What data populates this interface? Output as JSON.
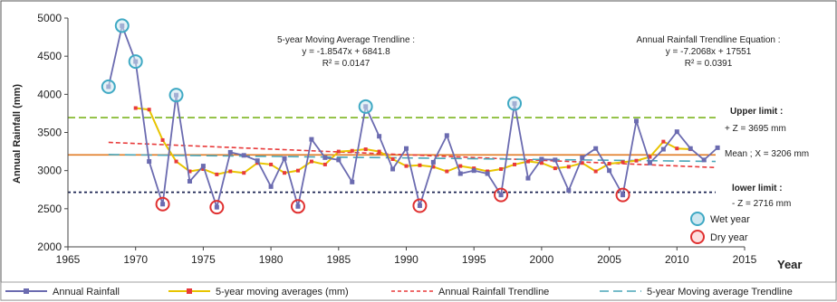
{
  "chart_data": {
    "type": "line",
    "title": "",
    "xlabel": "Year",
    "ylabel": "Annual Rainfall (mm)",
    "xlim": [
      1965,
      2015
    ],
    "ylim": [
      2000,
      5000
    ],
    "xticks": [
      1965,
      1970,
      1975,
      1980,
      1985,
      1990,
      1995,
      2000,
      2005,
      2010,
      2015
    ],
    "yticks": [
      2000,
      2500,
      3000,
      3500,
      4000,
      4500,
      5000
    ],
    "x": [
      1968,
      1969,
      1970,
      1971,
      1972,
      1973,
      1974,
      1975,
      1976,
      1977,
      1978,
      1979,
      1980,
      1981,
      1982,
      1983,
      1984,
      1985,
      1986,
      1987,
      1988,
      1989,
      1990,
      1991,
      1992,
      1993,
      1994,
      1995,
      1996,
      1997,
      1998,
      1999,
      2000,
      2001,
      2002,
      2003,
      2004,
      2005,
      2006,
      2007,
      2008,
      2009,
      2010,
      2011,
      2012,
      2013
    ],
    "series": [
      {
        "name": "Annual Rainfall",
        "color": "#6b6bb0",
        "values": [
          4100,
          4900,
          4430,
          3120,
          2560,
          3990,
          2860,
          3060,
          2520,
          3240,
          3200,
          3130,
          2790,
          3160,
          2530,
          3410,
          3170,
          3140,
          2850,
          3840,
          3450,
          3020,
          3290,
          2540,
          3110,
          3460,
          2960,
          3000,
          2960,
          2680,
          3880,
          2900,
          3150,
          3140,
          2740,
          3170,
          3290,
          3000,
          2680,
          3650,
          3100,
          3280,
          3510,
          3290,
          3140,
          3300
        ]
      },
      {
        "name": "5-year moving averages (mm)",
        "color": "#e8c400",
        "values": [
          null,
          null,
          3820,
          3800,
          3400,
          3120,
          2990,
          3020,
          2950,
          2990,
          2970,
          3100,
          3080,
          2970,
          3000,
          3120,
          3080,
          3250,
          3260,
          3280,
          3250,
          3150,
          3060,
          3070,
          3050,
          2990,
          3060,
          3030,
          2990,
          3020,
          3080,
          3120,
          3100,
          3030,
          3050,
          3100,
          2990,
          3090,
          3110,
          3130,
          3180,
          3380,
          3290,
          3280,
          null,
          null
        ]
      }
    ],
    "trendlines": [
      {
        "name": "Annual Rainfall Trendline",
        "color": "#e83a3a",
        "y_start": 3370,
        "y_end": 3040
      },
      {
        "name": "5-year Moving average Trendline",
        "color": "#4aa6b8",
        "y_start": 3210,
        "y_end": 3120
      }
    ],
    "reference_lines": [
      {
        "name": "Upper limit",
        "value": 3695,
        "color": "#8fbf3f"
      },
      {
        "name": "Mean",
        "value": 3206,
        "color": "#e07a22"
      },
      {
        "name": "lower limit",
        "value": 2716,
        "color": "#1a2250"
      }
    ],
    "wet_years": [
      1968,
      1969,
      1970,
      1973,
      1987,
      1998
    ],
    "dry_years": [
      1972,
      1976,
      1982,
      1991,
      1997,
      2006
    ],
    "legend_position": "bottom",
    "grid": false
  },
  "annotations": {
    "ma_title": "5-year Moving Average Trendline :",
    "ma_eq": "y = -1.8547x + 6841.8",
    "ma_r2": "R² = 0.0147",
    "ar_title": "Annual Rainfall Trendline Equation :",
    "ar_eq": "y = -7.2068x + 17551",
    "ar_r2": "R² = 0.0391",
    "upper_title": "Upper limit :",
    "upper_val": "+ Z = 3695 mm",
    "mean_label": "Mean ; X = 3206 mm",
    "lower_title": "lower limit :",
    "lower_val": "- Z = 2716 mm",
    "wet_label": "Wet year",
    "dry_label": "Dry year"
  },
  "legend": {
    "items": [
      "Annual Rainfall",
      "5-year moving averages (mm)",
      "Annual Rainfall Trendline",
      "5-year Moving average Trendline"
    ]
  },
  "colors": {
    "wet_fill": "#cfe7f0",
    "wet_stroke": "#3fa9c4",
    "dry_stroke": "#e03030"
  }
}
